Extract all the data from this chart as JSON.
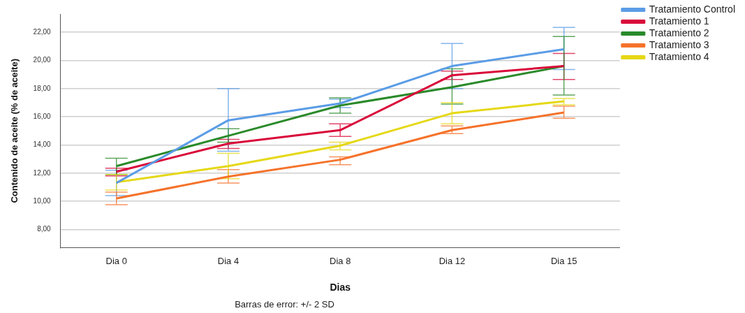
{
  "chart_data": {
    "type": "line",
    "xlabel": "Dias",
    "ylabel": "Contenido de aceite (% de aceite)",
    "categories": [
      "Dia 0",
      "Dia 4",
      "Dia 8",
      "Dia 12",
      "Dia 15"
    ],
    "ylim": [
      6.7,
      23.3
    ],
    "yticks": [
      {
        "value": 8,
        "label": "8,00"
      },
      {
        "value": 10,
        "label": "10,00"
      },
      {
        "value": 12,
        "label": "12,00"
      },
      {
        "value": 14,
        "label": "14,00"
      },
      {
        "value": 16,
        "label": "16,00"
      },
      {
        "value": 18,
        "label": "18,00"
      },
      {
        "value": 20,
        "label": "20,00"
      },
      {
        "value": 22,
        "label": "22,00"
      }
    ],
    "grid": "y",
    "legend": "right",
    "marker": "none",
    "line_style": "solid",
    "series": [
      {
        "name": "Tratamiento Control",
        "color": "#5b9ce6",
        "values": [
          11.3,
          15.75,
          16.95,
          19.6,
          20.8
        ],
        "errors": [
          [
            10.4,
            12.2
          ],
          [
            13.55,
            18.0
          ],
          [
            16.65,
            17.25
          ],
          [
            18.0,
            21.2
          ],
          [
            19.35,
            22.35
          ]
        ]
      },
      {
        "name": "Tratamiento 1",
        "color": "#d9083a",
        "values": [
          12.1,
          14.1,
          15.05,
          18.95,
          19.6
        ],
        "errors": [
          [
            11.8,
            12.35
          ],
          [
            13.75,
            14.4
          ],
          [
            14.6,
            15.5
          ],
          [
            18.65,
            19.25
          ],
          [
            18.65,
            20.5
          ]
        ]
      },
      {
        "name": "Tratamiento 2",
        "color": "#2a8a2a",
        "values": [
          12.5,
          14.65,
          16.8,
          18.1,
          19.6
        ],
        "errors": [
          [
            11.9,
            13.05
          ],
          [
            14.2,
            15.15
          ],
          [
            16.25,
            17.35
          ],
          [
            16.9,
            19.4
          ],
          [
            17.55,
            21.7
          ]
        ]
      },
      {
        "name": "Tratamiento 3",
        "color": "#f5722a",
        "values": [
          10.2,
          11.75,
          12.95,
          15.05,
          16.3
        ],
        "errors": [
          [
            9.75,
            10.65
          ],
          [
            11.3,
            12.25
          ],
          [
            12.6,
            13.15
          ],
          [
            14.8,
            15.35
          ],
          [
            15.9,
            16.75
          ]
        ]
      },
      {
        "name": "Tratamiento 4",
        "color": "#e5d815",
        "values": [
          11.35,
          12.5,
          13.95,
          16.25,
          17.1
        ],
        "errors": [
          [
            10.8,
            11.9
          ],
          [
            11.6,
            13.4
          ],
          [
            13.65,
            14.2
          ],
          [
            15.5,
            17.0
          ],
          [
            16.85,
            17.3
          ]
        ]
      }
    ],
    "annotations": [
      "Barras de error: +/- 2 SD"
    ]
  }
}
